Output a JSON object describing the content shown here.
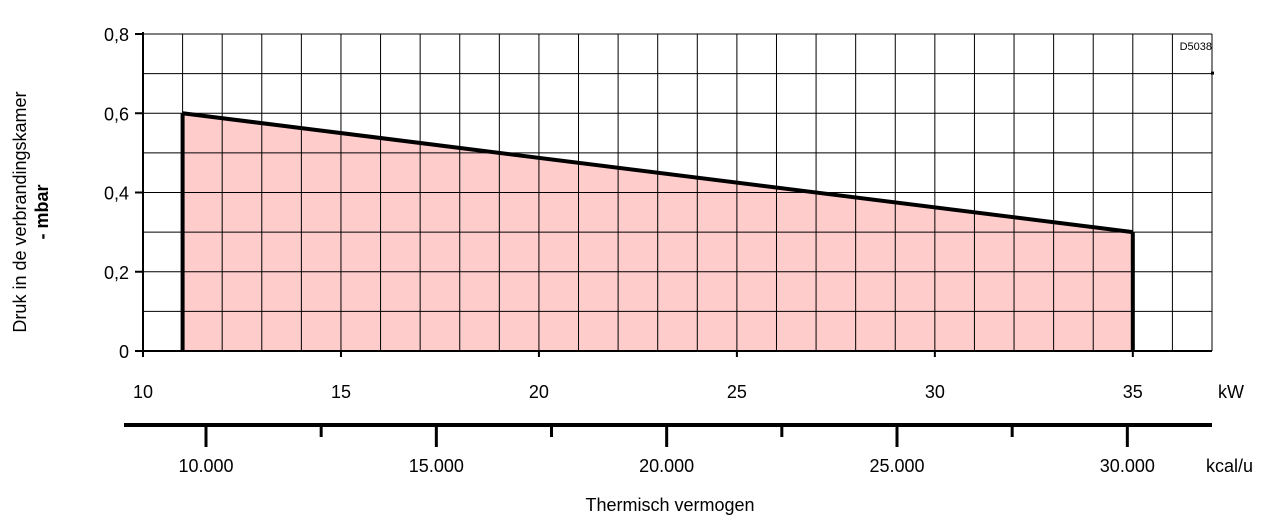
{
  "chart_data": {
    "type": "area",
    "code": "D5038",
    "ylabel": "Druk in de verbrandingskamer",
    "ylabel_unit": "- mbar",
    "xlabel": "Thermisch vermogen",
    "x_unit": "kW",
    "x2_unit": "kcal/u",
    "xlim": [
      10,
      37
    ],
    "ylim": [
      0,
      0.8
    ],
    "x_ticks": [
      10,
      15,
      20,
      25,
      30,
      35
    ],
    "x_tick_labels": [
      "10",
      "15",
      "20",
      "25",
      "30",
      "35"
    ],
    "y_ticks": [
      0,
      0.2,
      0.4,
      0.6,
      0.8
    ],
    "y_tick_labels": [
      "0",
      "0,2",
      "0,4",
      "0,6",
      "0,8"
    ],
    "x2_ticks": [
      10000,
      15000,
      20000,
      25000,
      30000
    ],
    "x2_tick_labels": [
      "10.000",
      "15.000",
      "20.000",
      "25.000",
      "30.000"
    ],
    "x2_minor_ticks": [
      12500,
      17500,
      22500,
      27500
    ],
    "x_grid_step": 1,
    "y_grid_step": 0.1,
    "grid": true,
    "fill_color": "#ffcccc",
    "series": [
      {
        "x": [
          11,
          35
        ],
        "y": [
          0.6,
          0.3
        ]
      }
    ]
  }
}
